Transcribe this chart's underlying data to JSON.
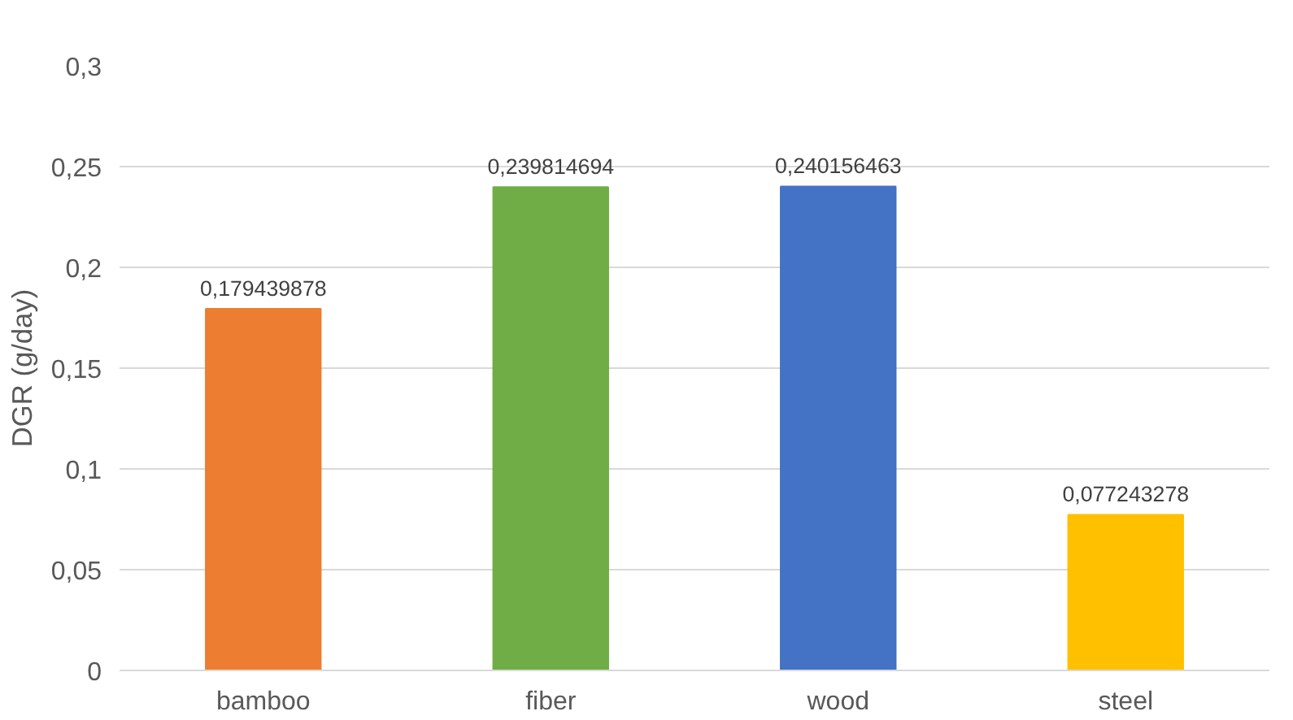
{
  "chart_data": {
    "type": "bar",
    "ylabel": "DGR (g/day)",
    "categories": [
      "bamboo",
      "fiber",
      "wood",
      "steel"
    ],
    "values": [
      0.179439878,
      0.239814694,
      0.240156463,
      0.077243278
    ],
    "colors": [
      "#ed7d31",
      "#70ad47",
      "#4472c4",
      "#ffc000"
    ],
    "value_labels": [
      "0,179439878",
      "0,239814694",
      "0,240156463",
      "0,077243278"
    ],
    "ylim": [
      0,
      0.3
    ],
    "yticks": [
      {
        "value": 0,
        "label": "0"
      },
      {
        "value": 0.05,
        "label": "0,05"
      },
      {
        "value": 0.1,
        "label": "0,1"
      },
      {
        "value": 0.15,
        "label": "0,15"
      },
      {
        "value": 0.2,
        "label": "0,2"
      },
      {
        "value": 0.25,
        "label": "0,25"
      },
      {
        "value": 0.3,
        "label": "0,3"
      }
    ],
    "grid": "y"
  }
}
